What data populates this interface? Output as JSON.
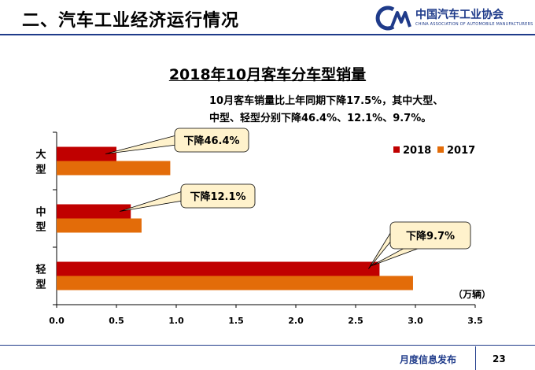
{
  "header": {
    "title": "二、汽车工业经济运行情况",
    "logo_name": "中国汽车工业协会",
    "logo_sub": "CHINA ASSOCIATION OF AUTOMOBILE MANUFACTURERS",
    "logo_mark": "CM",
    "rule_color": "#1f3b8a"
  },
  "note": {
    "line1": "10月客车销量比上年同期下降17.5%，其中大型、",
    "line2": "中型、轻型分别下降46.4%、12.1%、9.7%。"
  },
  "footer": {
    "text": "月度信息发布",
    "page": "23"
  },
  "chart_data": {
    "type": "bar",
    "orientation": "horizontal",
    "title": "2018年10月客车分车型销量",
    "categories": [
      {
        "line1": "大",
        "line2": "型"
      },
      {
        "line1": "中",
        "line2": "型"
      },
      {
        "line1": "轻",
        "line2": "型"
      }
    ],
    "series": [
      {
        "name": "2018",
        "color": "#c00000",
        "values": [
          0.5,
          0.62,
          2.7
        ]
      },
      {
        "name": "2017",
        "color": "#e36c09",
        "values": [
          0.95,
          0.71,
          2.98
        ]
      }
    ],
    "xlim": [
      0,
      3.5
    ],
    "xticks": [
      "0.0",
      "0.5",
      "1.0",
      "1.5",
      "2.0",
      "2.5",
      "3.0",
      "3.5"
    ],
    "unit_label": "（万辆）",
    "legend_position": "top-right",
    "grid": false,
    "annotations": [
      {
        "category_index": 0,
        "text": "下降46.4%"
      },
      {
        "category_index": 1,
        "text": "下降12.1%"
      },
      {
        "category_index": 2,
        "text": "下降9.7%"
      }
    ]
  }
}
